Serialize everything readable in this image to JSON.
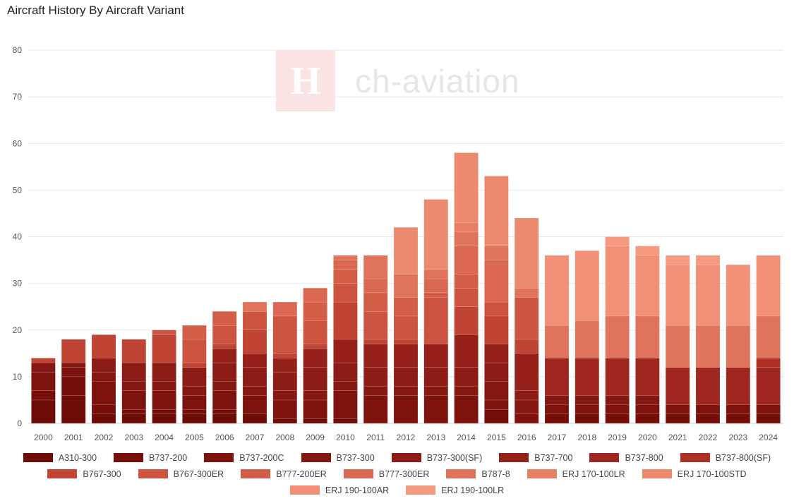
{
  "watermark": {
    "logo": "CH",
    "text": "ch-aviation"
  },
  "chart_data": {
    "type": "bar",
    "stacked": true,
    "title": "Aircraft History By Aircraft Variant",
    "xlabel": "",
    "ylabel": "",
    "ylim": [
      0,
      80
    ],
    "yticks": [
      0,
      10,
      20,
      30,
      40,
      50,
      60,
      70,
      80
    ],
    "grid": true,
    "legend": "bottom",
    "categories": [
      "2000",
      "2001",
      "2002",
      "2003",
      "2004",
      "2005",
      "2006",
      "2007",
      "2008",
      "2009",
      "2010",
      "2011",
      "2012",
      "2013",
      "2014",
      "2015",
      "2016",
      "2017",
      "2018",
      "2019",
      "2020",
      "2021",
      "2022",
      "2023",
      "2024"
    ],
    "series": [
      {
        "name": "A310-300",
        "color": "#6e0c07",
        "values": [
          5,
          6,
          2,
          2,
          2,
          2,
          2,
          2,
          1,
          1,
          1,
          0,
          0,
          0,
          0,
          0,
          0,
          0,
          0,
          0,
          0,
          0,
          0,
          0,
          0
        ]
      },
      {
        "name": "B737-200",
        "color": "#760f0a",
        "values": [
          2,
          4,
          2,
          1,
          1,
          1,
          1,
          0,
          0,
          0,
          0,
          0,
          0,
          0,
          0,
          3,
          0,
          2,
          2,
          2,
          2,
          2,
          2,
          2,
          2
        ]
      },
      {
        "name": "B737-200C",
        "color": "#7e130e",
        "values": [
          4,
          2,
          5,
          4,
          4,
          3,
          4,
          4,
          4,
          4,
          6,
          6,
          6,
          6,
          6,
          2,
          2,
          2,
          2,
          2,
          2,
          2,
          2,
          2,
          2
        ]
      },
      {
        "name": "B737-300",
        "color": "#861812",
        "values": [
          2,
          1,
          2,
          2,
          2,
          2,
          2,
          2,
          2,
          2,
          2,
          2,
          2,
          2,
          2,
          4,
          3,
          2,
          2,
          2,
          2,
          0,
          0,
          0,
          0
        ]
      },
      {
        "name": "B737-300(SF)",
        "color": "#8e1c16",
        "values": [
          0,
          0,
          3,
          4,
          4,
          4,
          4,
          4,
          4,
          5,
          4,
          4,
          4,
          4,
          4,
          4,
          2,
          0,
          0,
          0,
          0,
          0,
          0,
          0,
          0
        ]
      },
      {
        "name": "B737-700",
        "color": "#96201a",
        "values": [
          0,
          0,
          0,
          0,
          0,
          0,
          3,
          3,
          3,
          4,
          5,
          5,
          5,
          5,
          7,
          4,
          8,
          0,
          0,
          0,
          0,
          0,
          0,
          0,
          0
        ]
      },
      {
        "name": "B737-800",
        "color": "#a0271f",
        "values": [
          0,
          0,
          0,
          0,
          0,
          0,
          0,
          0,
          0,
          0,
          0,
          0,
          0,
          0,
          0,
          0,
          0,
          8,
          8,
          8,
          8,
          8,
          8,
          8,
          8
        ]
      },
      {
        "name": "B737-800(SF)",
        "color": "#ac3124",
        "values": [
          0,
          0,
          0,
          0,
          0,
          0,
          0,
          0,
          0,
          0,
          0,
          0,
          0,
          0,
          0,
          0,
          0,
          0,
          0,
          0,
          0,
          0,
          0,
          0,
          2
        ]
      },
      {
        "name": "B767-300",
        "color": "#c04434",
        "values": [
          1,
          5,
          5,
          5,
          6,
          1,
          1,
          5,
          1,
          1,
          8,
          1,
          1,
          0,
          6,
          6,
          3,
          0,
          0,
          0,
          0,
          0,
          0,
          0,
          0
        ]
      },
      {
        "name": "B767-300ER",
        "color": "#cd5440",
        "values": [
          0,
          0,
          0,
          0,
          1,
          5,
          4,
          4,
          8,
          5,
          4,
          6,
          5,
          10,
          4,
          3,
          9,
          0,
          0,
          0,
          0,
          0,
          0,
          0,
          0
        ]
      },
      {
        "name": "B777-200ER",
        "color": "#d35e48",
        "values": [
          0,
          0,
          0,
          0,
          0,
          3,
          3,
          0,
          0,
          4,
          3,
          4,
          4,
          1,
          3,
          0,
          0,
          0,
          0,
          0,
          0,
          0,
          0,
          0,
          0
        ]
      },
      {
        "name": "B777-300ER",
        "color": "#da6852",
        "values": [
          0,
          0,
          0,
          0,
          0,
          0,
          0,
          0,
          3,
          3,
          2,
          3,
          0,
          3,
          6,
          9,
          0,
          0,
          0,
          0,
          0,
          0,
          0,
          0,
          0
        ]
      },
      {
        "name": "B787-8",
        "color": "#e0735c",
        "values": [
          0,
          0,
          0,
          0,
          0,
          0,
          0,
          2,
          0,
          0,
          1,
          5,
          5,
          2,
          3,
          3,
          2,
          7,
          8,
          9,
          9,
          9,
          9,
          9,
          9
        ]
      },
      {
        "name": "ERJ 170-100LR",
        "color": "#e77e66",
        "values": [
          0,
          0,
          0,
          0,
          0,
          0,
          0,
          0,
          0,
          0,
          0,
          0,
          0,
          0,
          2,
          0,
          0,
          0,
          0,
          0,
          0,
          0,
          0,
          0,
          0
        ]
      },
      {
        "name": "ERJ 170-100STD",
        "color": "#ec8a70",
        "values": [
          0,
          0,
          0,
          0,
          0,
          0,
          0,
          0,
          0,
          0,
          0,
          0,
          10,
          15,
          15,
          15,
          15,
          0,
          0,
          0,
          0,
          0,
          0,
          0,
          0
        ]
      },
      {
        "name": "ERJ 190-100AR",
        "color": "#f19076",
        "values": [
          0,
          0,
          0,
          0,
          0,
          0,
          0,
          0,
          0,
          0,
          0,
          0,
          0,
          0,
          0,
          0,
          0,
          15,
          15,
          15,
          13,
          13,
          13,
          13,
          13
        ]
      },
      {
        "name": "ERJ 190-100LR",
        "color": "#f59a7e",
        "values": [
          0,
          0,
          0,
          0,
          0,
          0,
          0,
          0,
          0,
          0,
          0,
          0,
          0,
          0,
          0,
          0,
          0,
          0,
          0,
          2,
          2,
          2,
          2,
          0,
          0
        ]
      }
    ]
  }
}
